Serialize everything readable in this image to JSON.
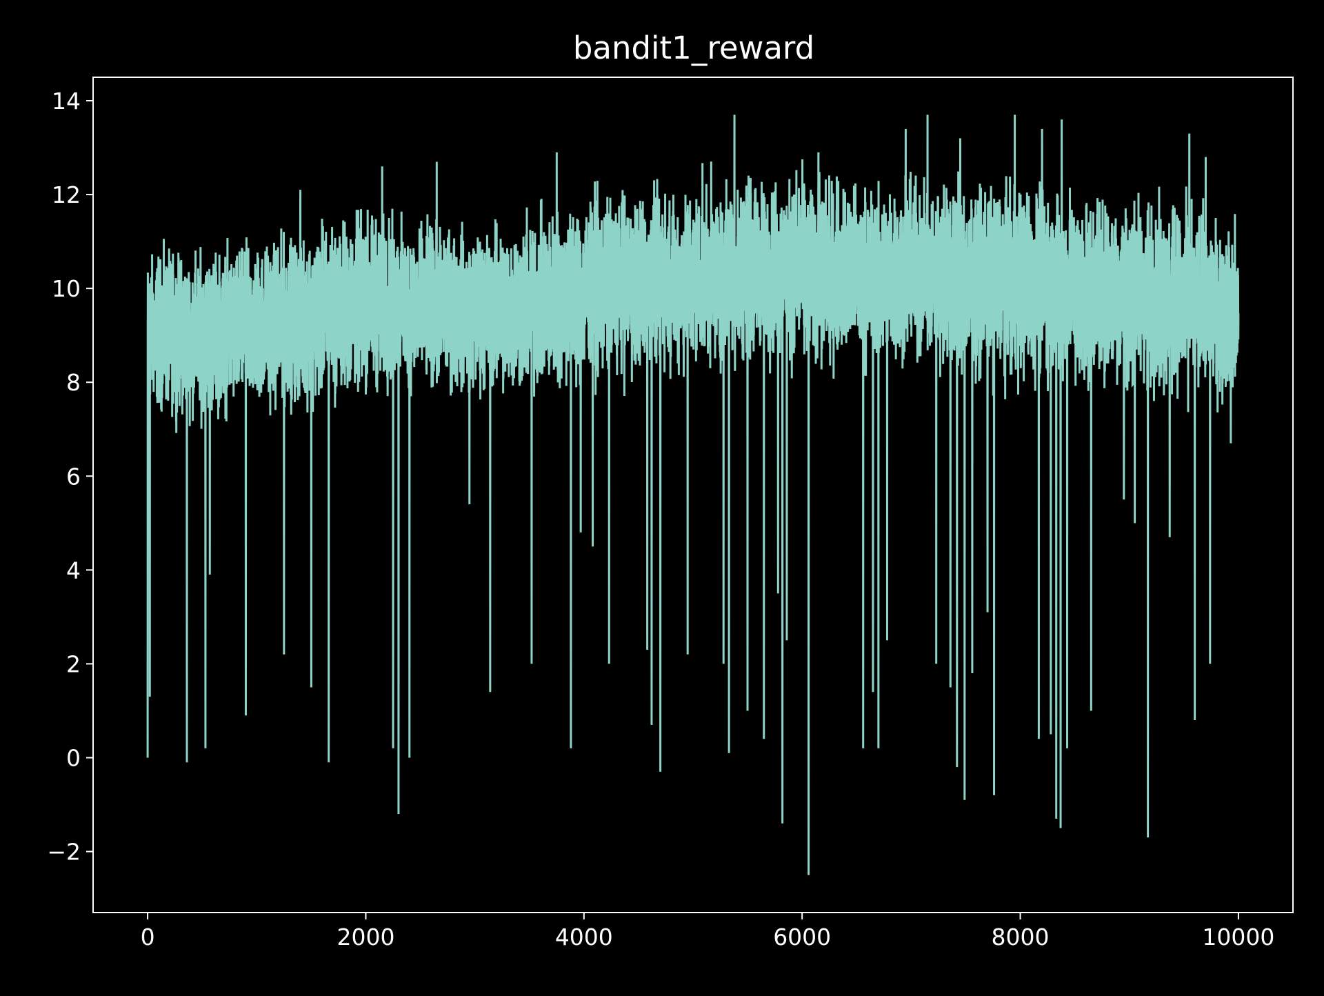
{
  "chart_data": {
    "type": "line",
    "title": "bandit1_reward",
    "xlabel": "",
    "ylabel": "",
    "xlim": [
      -500,
      10500
    ],
    "ylim": [
      -3.3,
      14.5
    ],
    "grid": false,
    "legend": "none",
    "colors": {
      "background": "#000000",
      "axes": "#ffffff",
      "line": "#8dd3c7"
    },
    "x_ticks": [
      0,
      2000,
      4000,
      6000,
      8000,
      10000
    ],
    "x_tick_labels": [
      "0",
      "2000",
      "4000",
      "6000",
      "8000",
      "10000"
    ],
    "y_ticks": [
      -2,
      0,
      2,
      4,
      6,
      8,
      10,
      12,
      14
    ],
    "y_tick_labels": [
      "−2",
      "0",
      "2",
      "4",
      "6",
      "8",
      "10",
      "12",
      "14"
    ],
    "series": [
      {
        "x_start": 0,
        "x_end": 10000,
        "n_points": 10000,
        "band_x": [
          0,
          500,
          1000,
          1500,
          2000,
          2500,
          3000,
          3500,
          4000,
          4500,
          5000,
          5500,
          6000,
          6500,
          7000,
          7500,
          8000,
          8500,
          9000,
          9500,
          10000
        ],
        "band_low": [
          7.2,
          7.0,
          7.2,
          7.3,
          7.5,
          7.6,
          7.5,
          7.4,
          7.7,
          7.9,
          8.1,
          8.2,
          8.2,
          8.1,
          8.2,
          8.0,
          7.8,
          7.7,
          7.6,
          7.5,
          7.4
        ],
        "band_high": [
          11.0,
          11.0,
          11.2,
          11.5,
          11.9,
          11.6,
          11.5,
          11.8,
          12.2,
          12.3,
          12.4,
          12.6,
          12.7,
          12.4,
          12.6,
          12.5,
          12.5,
          12.4,
          12.2,
          12.0,
          11.5
        ],
        "spikes_up": [
          {
            "x": 1250,
            "y": 12.2
          },
          {
            "x": 1400,
            "y": 12.1
          },
          {
            "x": 2150,
            "y": 12.6
          },
          {
            "x": 2650,
            "y": 12.7
          },
          {
            "x": 3750,
            "y": 12.9
          },
          {
            "x": 5380,
            "y": 13.7
          },
          {
            "x": 6150,
            "y": 12.9
          },
          {
            "x": 6950,
            "y": 13.4
          },
          {
            "x": 7150,
            "y": 13.7
          },
          {
            "x": 7450,
            "y": 13.2
          },
          {
            "x": 7950,
            "y": 13.7
          },
          {
            "x": 8200,
            "y": 13.4
          },
          {
            "x": 8380,
            "y": 13.6
          },
          {
            "x": 8650,
            "y": 13.2
          },
          {
            "x": 9550,
            "y": 13.3
          },
          {
            "x": 9700,
            "y": 12.8
          }
        ],
        "spikes_down": [
          {
            "x": 0,
            "y": 0.0
          },
          {
            "x": 20,
            "y": 1.3
          },
          {
            "x": 360,
            "y": -0.1
          },
          {
            "x": 530,
            "y": 0.2
          },
          {
            "x": 570,
            "y": 3.9
          },
          {
            "x": 900,
            "y": 0.9
          },
          {
            "x": 1250,
            "y": 2.2
          },
          {
            "x": 1500,
            "y": 1.5
          },
          {
            "x": 1660,
            "y": -0.1
          },
          {
            "x": 2250,
            "y": 0.2
          },
          {
            "x": 2300,
            "y": -1.2
          },
          {
            "x": 2400,
            "y": 0.0
          },
          {
            "x": 2950,
            "y": 5.4
          },
          {
            "x": 3140,
            "y": 1.4
          },
          {
            "x": 3520,
            "y": 2.0
          },
          {
            "x": 3880,
            "y": 0.2
          },
          {
            "x": 3970,
            "y": 4.8
          },
          {
            "x": 4080,
            "y": 4.5
          },
          {
            "x": 4230,
            "y": 2.0
          },
          {
            "x": 4580,
            "y": 2.3
          },
          {
            "x": 4620,
            "y": 0.7
          },
          {
            "x": 4700,
            "y": -0.3
          },
          {
            "x": 4950,
            "y": 2.2
          },
          {
            "x": 5280,
            "y": 2.0
          },
          {
            "x": 5330,
            "y": 0.1
          },
          {
            "x": 5500,
            "y": 1.0
          },
          {
            "x": 5650,
            "y": 0.4
          },
          {
            "x": 5780,
            "y": 3.5
          },
          {
            "x": 5820,
            "y": -1.4
          },
          {
            "x": 5860,
            "y": 2.5
          },
          {
            "x": 6060,
            "y": -2.5
          },
          {
            "x": 6560,
            "y": 0.2
          },
          {
            "x": 6650,
            "y": 1.4
          },
          {
            "x": 6700,
            "y": 0.2
          },
          {
            "x": 6780,
            "y": 2.5
          },
          {
            "x": 7230,
            "y": 2.0
          },
          {
            "x": 7360,
            "y": 1.5
          },
          {
            "x": 7420,
            "y": -0.2
          },
          {
            "x": 7490,
            "y": -0.9
          },
          {
            "x": 7560,
            "y": 1.8
          },
          {
            "x": 7700,
            "y": 3.1
          },
          {
            "x": 7760,
            "y": -0.8
          },
          {
            "x": 8170,
            "y": 0.4
          },
          {
            "x": 8280,
            "y": 0.5
          },
          {
            "x": 8330,
            "y": -1.3
          },
          {
            "x": 8370,
            "y": -1.5
          },
          {
            "x": 8430,
            "y": 0.2
          },
          {
            "x": 8650,
            "y": 1.0
          },
          {
            "x": 8950,
            "y": 5.5
          },
          {
            "x": 9050,
            "y": 5.0
          },
          {
            "x": 9170,
            "y": -1.7
          },
          {
            "x": 9370,
            "y": 4.7
          },
          {
            "x": 9600,
            "y": 0.8
          },
          {
            "x": 9740,
            "y": 2.0
          },
          {
            "x": 9930,
            "y": 6.7
          }
        ]
      }
    ]
  }
}
